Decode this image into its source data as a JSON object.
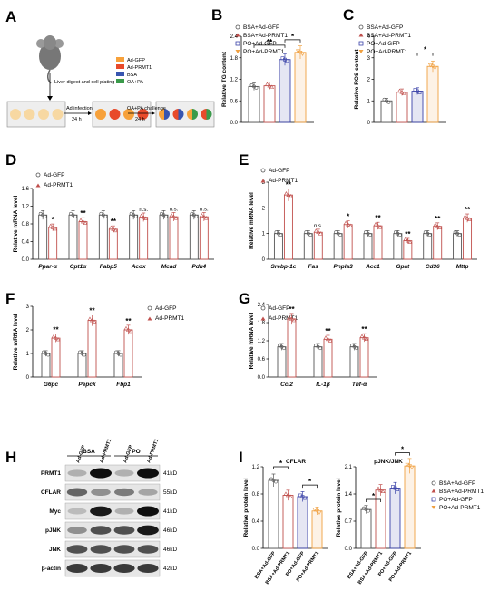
{
  "colors": {
    "gfp": "#555555",
    "prmt1": "#c0504d",
    "po_gfp": "#3a42a8",
    "po_prmt1": "#f0a040",
    "orange": "#f7a13b",
    "red": "#e84a2a",
    "blue": "#3855b0",
    "green": "#3a9a4a",
    "well": "#f7d8a2"
  },
  "panels": {
    "A": "A",
    "B": "B",
    "C": "C",
    "D": "D",
    "E": "E",
    "F": "F",
    "G": "G",
    "H": "H",
    "I": "I"
  },
  "A": {
    "legend": [
      "Ad-GFP",
      "Ad-PRMT1",
      "BSA",
      "OA+PA"
    ],
    "liver": "Liver digest and cell plating",
    "ad_infection": "Ad infection",
    "ad_time": "24 h",
    "challenge": "OA+PA challenge",
    "challenge_time": "24 h"
  },
  "legend4": [
    "BSA+Ad-GFP",
    "BSA+Ad-PRMT1",
    "PO+Ad-GFP",
    "PO+Ad-PRMT1"
  ],
  "legend2": [
    "Ad-GFP",
    "Ad-PRMT1"
  ],
  "B": {
    "ylabel": "Relative TG content",
    "ticks": [
      "0.0",
      "0.6",
      "1.2",
      "1.8",
      "2.4"
    ],
    "values": [
      1.0,
      1.02,
      1.75,
      1.95
    ],
    "sig": [
      "**",
      "*"
    ]
  },
  "C": {
    "ylabel": "Relative ROS content",
    "ticks": [
      "0",
      "1",
      "2",
      "3",
      "4"
    ],
    "values": [
      1.0,
      1.4,
      1.45,
      2.6
    ],
    "sig": [
      "*"
    ]
  },
  "D": {
    "ylabel": "Relative mRNA level",
    "ticks": [
      "0.0",
      "0.4",
      "0.8",
      "1.2",
      "1.6"
    ],
    "genes": [
      "Ppar-α",
      "Cpt1α",
      "Fabp5",
      "Acox",
      "Mcad",
      "Pdk4"
    ],
    "gfp": [
      1.0,
      1.0,
      1.0,
      1.0,
      1.0,
      1.0
    ],
    "prmt1": [
      0.72,
      0.85,
      0.68,
      0.95,
      0.96,
      0.96
    ],
    "sig": [
      "*",
      "**",
      "**",
      "n.s.",
      "n.s.",
      "n.s."
    ]
  },
  "E": {
    "ylabel": "Relative mRNA level",
    "ticks": [
      "0",
      "1",
      "2",
      "3"
    ],
    "genes": [
      "Srebp-1c",
      "Fas",
      "Pnpla3",
      "Acc1",
      "Gpat",
      "Cd36",
      "Mttp"
    ],
    "gfp": [
      1.0,
      1.0,
      1.0,
      1.0,
      1.0,
      1.0,
      1.0
    ],
    "prmt1": [
      2.5,
      1.05,
      1.35,
      1.3,
      0.72,
      1.28,
      1.6
    ],
    "sig": [
      "**",
      "n.s.",
      "*",
      "**",
      "**",
      "**",
      "**"
    ]
  },
  "F": {
    "ylabel": "Relative mRNA level",
    "ticks": [
      "0",
      "1",
      "2",
      "3"
    ],
    "genes": [
      "G6pc",
      "Pepck",
      "Fbp1"
    ],
    "gfp": [
      1.0,
      1.0,
      1.0
    ],
    "prmt1": [
      1.65,
      2.4,
      2.0
    ],
    "sig": [
      "**",
      "**",
      "**"
    ]
  },
  "G": {
    "ylabel": "Relative mRNA level",
    "ticks": [
      "0.0",
      "0.6",
      "1.2",
      "1.8",
      "2.4"
    ],
    "genes": [
      "Ccl2",
      "IL-1β",
      "Tnf-α"
    ],
    "gfp": [
      1.0,
      1.0,
      1.0
    ],
    "prmt1": [
      1.92,
      1.25,
      1.3
    ],
    "sig": [
      "**",
      "**",
      "**"
    ]
  },
  "H": {
    "groups": [
      "BSA",
      "PO"
    ],
    "lanes": [
      "Ad-GFP",
      "Ad-PRMT1",
      "Ad-GFP",
      "Ad-PRMT1"
    ],
    "proteins": [
      "PRMT1",
      "CFLAR",
      "Myc",
      "pJNK",
      "JNK",
      "β-actin"
    ],
    "sizes": [
      "41kD",
      "55kD",
      "41kD",
      "46kD",
      "46kD",
      "42kD"
    ]
  },
  "I": {
    "ylabel": "Relative protein level",
    "cflar": {
      "title": "CFLAR",
      "ticks": [
        "0.0",
        "0.4",
        "0.8",
        "1.2"
      ],
      "values": [
        1.0,
        0.78,
        0.76,
        0.55
      ],
      "sig": [
        "*",
        "*"
      ]
    },
    "pjnk": {
      "title": "pJNK/JNK",
      "ticks": [
        "0.0",
        "0.7",
        "1.4",
        "2.1"
      ],
      "values": [
        1.0,
        1.5,
        1.55,
        2.12
      ],
      "sig": [
        "*",
        "*"
      ]
    },
    "xlabels": [
      "BSA+Ad-GFP",
      "BSA+Ad-PRMT1",
      "PO+Ad-GFP",
      "PO+Ad-PRMT1"
    ]
  }
}
